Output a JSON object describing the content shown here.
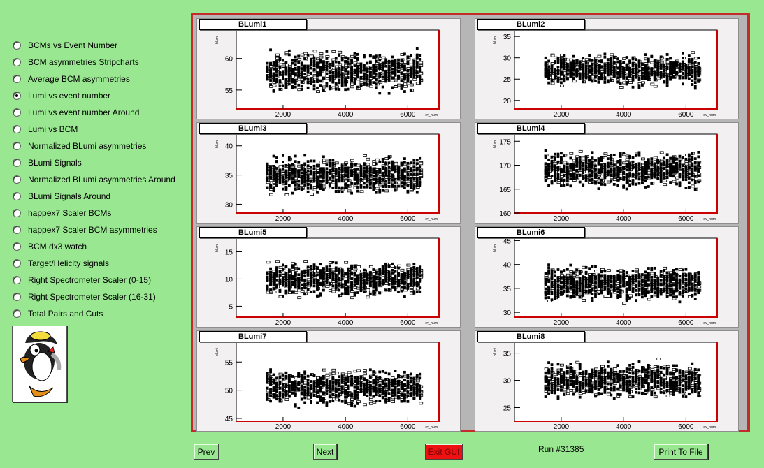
{
  "menu": {
    "selected": 3,
    "items": [
      "BCMs vs Event Number",
      "BCM asymmetries Stripcharts",
      "Average BCM asymmetries",
      "Lumi vs event number",
      "Lumi vs event number Around",
      "Lumi vs BCM",
      "Normalized BLumi asymmetries",
      "BLumi Signals",
      "Normalized BLumi asymmetries Around",
      "BLumi Signals Around",
      "happex7 Scaler BCMs",
      "happex7 Scaler BCM asymmetries",
      "BCM dx3 watch",
      "Target/Helicity signals",
      "Right Spectrometer Scaler (0-15)",
      "Right Spectrometer Scaler (16-31)",
      "Total Pairs and Cuts"
    ]
  },
  "logo_icon": "penguin-logo-icon",
  "buttons": {
    "prev": "Prev",
    "next": "Next",
    "exit": "Exit GUI",
    "print": "Print To File"
  },
  "run_label": "Run #31385",
  "colors": {
    "background": "#99e891",
    "canvas_border": "#c62b2b",
    "exit_button": "#ee1111"
  },
  "chart_data": [
    {
      "type": "scatter",
      "title": "BLumi1",
      "ylabel": "blumi",
      "xlabel": "ev_num",
      "xticks": [
        2000,
        4000,
        6000
      ],
      "yticks": [
        55,
        60
      ],
      "xlim": [
        500,
        7000
      ],
      "ylim": [
        52,
        64.5
      ],
      "center": 58,
      "spread": 3.5
    },
    {
      "type": "scatter",
      "title": "BLumi2",
      "ylabel": "blumi",
      "xlabel": "ev_num",
      "xticks": [
        2000,
        4000,
        6000
      ],
      "yticks": [
        20,
        25,
        30,
        35
      ],
      "xlim": [
        500,
        7000
      ],
      "ylim": [
        18,
        36.5
      ],
      "center": 27,
      "spread": 4
    },
    {
      "type": "scatter",
      "title": "BLumi3",
      "ylabel": "blumi",
      "xlabel": "ev_num",
      "xticks": [
        2000,
        4000,
        6000
      ],
      "yticks": [
        30,
        35,
        40
      ],
      "xlim": [
        500,
        7000
      ],
      "ylim": [
        28.5,
        42
      ],
      "center": 35,
      "spread": 3.5
    },
    {
      "type": "scatter",
      "title": "BLumi4",
      "ylabel": "blumi",
      "xlabel": "ev_num",
      "xticks": [
        2000,
        4000,
        6000
      ],
      "yticks": [
        160,
        165,
        170,
        175
      ],
      "xlim": [
        500,
        7000
      ],
      "ylim": [
        160,
        176.5
      ],
      "center": 169,
      "spread": 4
    },
    {
      "type": "scatter",
      "title": "BLumi5",
      "ylabel": "blumi",
      "xlabel": "ev_num",
      "xticks": [
        2000,
        4000,
        6000
      ],
      "yticks": [
        5,
        10,
        15
      ],
      "xlim": [
        500,
        7000
      ],
      "ylim": [
        3,
        17.5
      ],
      "center": 10,
      "spread": 3.5
    },
    {
      "type": "scatter",
      "title": "BLumi6",
      "ylabel": "blumi",
      "xlabel": "ev_num",
      "xticks": [
        2000,
        4000,
        6000
      ],
      "yticks": [
        30,
        35,
        40,
        45
      ],
      "xlim": [
        500,
        7000
      ],
      "ylim": [
        29,
        45.5
      ],
      "center": 36,
      "spread": 4
    },
    {
      "type": "scatter",
      "title": "BLumi7",
      "ylabel": "blumi",
      "xlabel": "ev_num",
      "xticks": [
        2000,
        4000,
        6000
      ],
      "yticks": [
        45,
        50,
        55
      ],
      "xlim": [
        500,
        7000
      ],
      "ylim": [
        44.5,
        58.5
      ],
      "center": 50.5,
      "spread": 3.5
    },
    {
      "type": "scatter",
      "title": "BLumi8",
      "ylabel": "blumi",
      "xlabel": "ev_num",
      "xticks": [
        2000,
        4000,
        6000
      ],
      "yticks": [
        25,
        30,
        35
      ],
      "xlim": [
        500,
        7000
      ],
      "ylim": [
        22.5,
        37
      ],
      "center": 30,
      "spread": 3.5
    }
  ]
}
